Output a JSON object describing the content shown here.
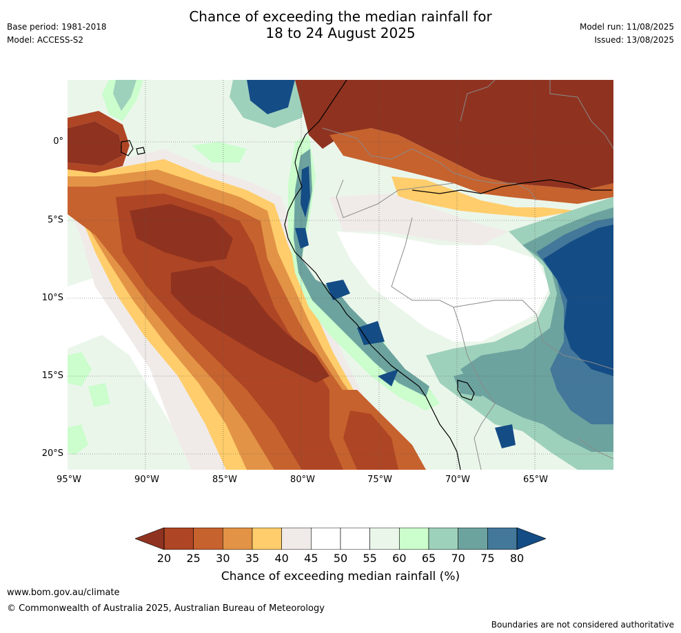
{
  "title": {
    "line1": "Chance of exceeding the median rainfall for",
    "line2": "18 to 24 August 2025"
  },
  "meta_left": {
    "base_period": "Base period: 1981-2018",
    "model": "Model: ACCESS-S2"
  },
  "meta_right": {
    "model_run": "Model run: 11/08/2025",
    "issued": "Issued: 13/08/2025"
  },
  "map": {
    "lon_range": [
      -95,
      -60
    ],
    "lat_range": [
      -21,
      4
    ],
    "lat_ticks": [
      {
        "value": 0,
        "label": "0°"
      },
      {
        "value": -5,
        "label": "5°S"
      },
      {
        "value": -10,
        "label": "10°S"
      },
      {
        "value": -15,
        "label": "15°S"
      },
      {
        "value": -20,
        "label": "20°S"
      }
    ],
    "lon_ticks": [
      {
        "value": -95,
        "label": "95°W"
      },
      {
        "value": -90,
        "label": "90°W"
      },
      {
        "value": -85,
        "label": "85°W"
      },
      {
        "value": -80,
        "label": "80°W"
      },
      {
        "value": -75,
        "label": "75°W"
      },
      {
        "value": -70,
        "label": "70°W"
      },
      {
        "value": -65,
        "label": "65°W"
      }
    ],
    "colors": {
      "c15": "#8f3320",
      "c20": "#ae4524",
      "c25": "#c6622e",
      "c30": "#e29346",
      "c35": "#ffcd6b",
      "c40": "#f0ebe8",
      "c50": "#ffffff",
      "c55": "#ebf6eb",
      "c60": "#cbfdcd",
      "c65": "#9ed1bb",
      "c70": "#6da39f",
      "c75": "#43789a",
      "c80": "#144c85"
    }
  },
  "colorbar": {
    "title": "Chance of exceeding median rainfall (%)",
    "ticks": [
      "20",
      "25",
      "30",
      "35",
      "40",
      "45",
      "50",
      "55",
      "60",
      "65",
      "70",
      "75",
      "80"
    ],
    "colors": [
      "#ae4524",
      "#c6622e",
      "#e29346",
      "#ffcd6b",
      "#f0ebe8",
      "#ffffff",
      "#ffffff",
      "#ebf6eb",
      "#cbfdcd",
      "#9ed1bb",
      "#6da39f",
      "#43789a"
    ],
    "under_color": "#8f3320",
    "over_color": "#144c85"
  },
  "footer": {
    "url": "www.bom.gov.au/climate",
    "copyright": "© Commonwealth of Australia 2025, Australian Bureau of Meteorology",
    "note": "Boundaries are not considered authoritative"
  }
}
